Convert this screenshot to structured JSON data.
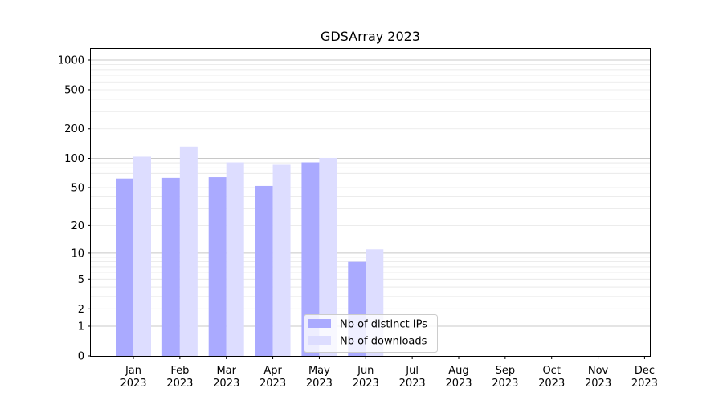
{
  "chart_data": {
    "type": "bar",
    "title": "GDSArray 2023",
    "xlabel": "",
    "ylabel": "",
    "y_scale": "log(1+y)",
    "categories": [
      {
        "month": "Jan",
        "year": "2023"
      },
      {
        "month": "Feb",
        "year": "2023"
      },
      {
        "month": "Mar",
        "year": "2023"
      },
      {
        "month": "Apr",
        "year": "2023"
      },
      {
        "month": "May",
        "year": "2023"
      },
      {
        "month": "Jun",
        "year": "2023"
      },
      {
        "month": "Jul",
        "year": "2023"
      },
      {
        "month": "Aug",
        "year": "2023"
      },
      {
        "month": "Sep",
        "year": "2023"
      },
      {
        "month": "Oct",
        "year": "2023"
      },
      {
        "month": "Nov",
        "year": "2023"
      },
      {
        "month": "Dec",
        "year": "2023"
      }
    ],
    "y_ticks": [
      0,
      1,
      2,
      5,
      10,
      20,
      50,
      100,
      200,
      500,
      1000
    ],
    "ylim": [
      0,
      1300
    ],
    "grid": "horizontal at major ticks and minor positions",
    "legend_position": "bottom-center",
    "series": [
      {
        "name": "Nb of distinct IPs",
        "color": "#aaaaff",
        "values": [
          62,
          63,
          64,
          52,
          91,
          8,
          0,
          0,
          0,
          0,
          0,
          0
        ]
      },
      {
        "name": "Nb of downloads",
        "color": "#ddddff",
        "values": [
          104,
          132,
          91,
          86,
          101,
          11,
          0,
          0,
          0,
          0,
          0,
          0
        ]
      }
    ]
  }
}
